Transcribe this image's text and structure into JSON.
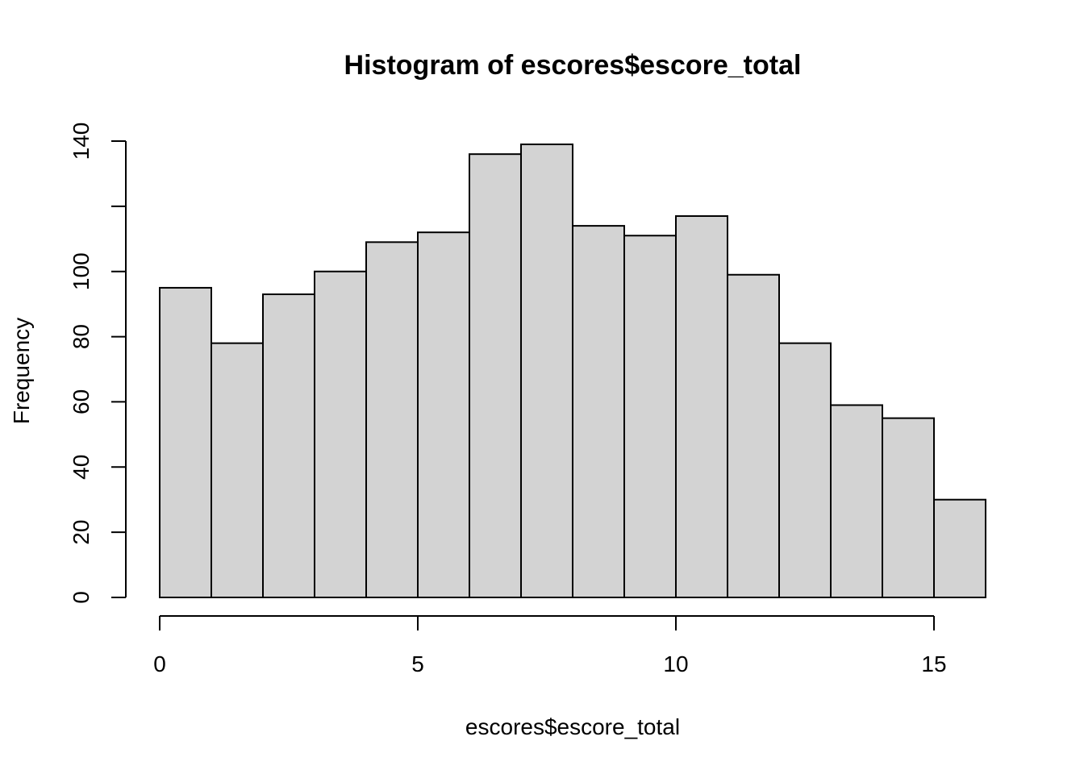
{
  "chart_data": {
    "type": "bar",
    "title": "Histogram of escores$escore_total",
    "xlabel": "escores$escore_total",
    "ylabel": "Frequency",
    "bin_edges": [
      0,
      1,
      2,
      3,
      4,
      5,
      6,
      7,
      8,
      9,
      10,
      11,
      12,
      13,
      14,
      15,
      16
    ],
    "values": [
      95,
      78,
      93,
      100,
      109,
      112,
      136,
      139,
      114,
      111,
      117,
      99,
      78,
      59,
      55,
      30
    ],
    "xlim": [
      0,
      16
    ],
    "ylim": [
      0,
      140
    ],
    "x_ticks": [
      0,
      5,
      10,
      15
    ],
    "x_tick_labels": [
      "0",
      "5",
      "10",
      "15"
    ],
    "y_ticks": [
      0,
      20,
      40,
      60,
      80,
      100,
      120,
      140
    ],
    "y_tick_labels": [
      "0",
      "20",
      "40",
      "60",
      "80",
      "100",
      "",
      "140"
    ],
    "grid": false,
    "bar_color": "#d3d3d3"
  }
}
